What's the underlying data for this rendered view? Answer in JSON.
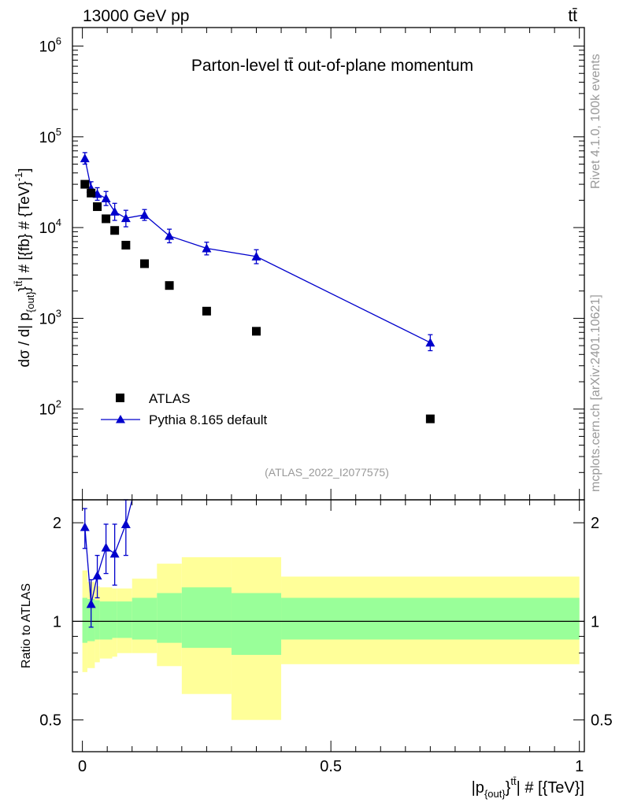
{
  "header": {
    "left": "13000 GeV pp",
    "right": "tt̄"
  },
  "side_labels": {
    "rivet": "Rivet 4.1.0,  100k events",
    "mcplots": "mcplots.cern.ch [arXiv:2401.10621]"
  },
  "colors": {
    "mc": "#0000cc",
    "data": "#000000",
    "band_inner": "#99ff99",
    "band_outer": "#ffff99",
    "note": "#999999"
  },
  "chart_data": [
    {
      "type": "scatter",
      "title": "Parton-level tt̄ out-of-plane momentum",
      "ylabel": "dσ / d| p_{out}^{tt̄}| # [{fb} # {TeV}^-1]",
      "ylabel_parts": {
        "main": "dσ / d| p",
        "sub": "{out}",
        "sup_a": "}",
        "sup_b": "tt̄",
        "rest": "| # [{fb} # {TeV}",
        "unit_exp": "-1",
        "close": "]"
      },
      "yscale": "log",
      "ylim": [
        10,
        1600000.0
      ],
      "xlim": [
        -0.02,
        1.01
      ],
      "yticks": [
        {
          "value": 100,
          "mantissa": "10",
          "exp": "2"
        },
        {
          "value": 1000,
          "mantissa": "10",
          "exp": "3"
        },
        {
          "value": 10000,
          "mantissa": "10",
          "exp": "4"
        },
        {
          "value": 100000,
          "mantissa": "10",
          "exp": "5"
        },
        {
          "value": 1000000,
          "mantissa": "10",
          "exp": "6"
        }
      ],
      "analysis_id": "(ATLAS_2022_I2077575)",
      "legend": {
        "position": "lower-left",
        "entries": [
          "ATLAS",
          "Pythia 8.165 default"
        ]
      },
      "series": [
        {
          "name": "ATLAS",
          "marker": "square",
          "x": [
            0.005,
            0.0175,
            0.03,
            0.0475,
            0.065,
            0.0875,
            0.125,
            0.175,
            0.25,
            0.35,
            0.7
          ],
          "y": [
            30000,
            24000,
            17000,
            12500,
            9300,
            6400,
            4000,
            2300,
            1200,
            720,
            78
          ]
        },
        {
          "name": "Pythia 8.165 default",
          "marker": "triangle",
          "x": [
            0.005,
            0.0175,
            0.03,
            0.0475,
            0.065,
            0.0875,
            0.125,
            0.175,
            0.25,
            0.35,
            0.7
          ],
          "y": [
            58000,
            27000,
            23500,
            21000,
            15000,
            12700,
            13800,
            8100,
            5900,
            4800,
            540
          ],
          "yerr_lo": [
            8000,
            4000,
            3500,
            3500,
            3000,
            2500,
            1800,
            1300,
            900,
            800,
            100
          ],
          "yerr_hi": [
            9000,
            5000,
            4000,
            4000,
            3500,
            2800,
            2000,
            1500,
            1000,
            900,
            120
          ]
        }
      ]
    },
    {
      "type": "scatter",
      "ylabel": "Ratio to ATLAS",
      "yscale": "log",
      "ylim": [
        0.4,
        2.35
      ],
      "yticks": [
        {
          "value": 0.5,
          "label": "0.5"
        },
        {
          "value": 1,
          "label": "1"
        },
        {
          "value": 2,
          "label": "2"
        }
      ],
      "xticks": [
        {
          "value": 0,
          "label": "0"
        },
        {
          "value": 0.5,
          "label": "0.5"
        },
        {
          "value": 1,
          "label": "1"
        }
      ],
      "xlabel": "|p_{out}^{tt̄}| # [{TeV}]",
      "xlabel_parts": {
        "pre": "|p",
        "sub": "{out}",
        "sup_a": "}",
        "sup_b": "tt̄",
        "rest": "| # [{TeV}]"
      },
      "bands": {
        "x_edges": [
          0.0,
          0.01,
          0.025,
          0.035,
          0.06,
          0.07,
          0.1,
          0.15,
          0.2,
          0.3,
          0.4,
          1.0
        ],
        "inner_lo": [
          0.86,
          0.87,
          0.88,
          0.88,
          0.89,
          0.89,
          0.88,
          0.86,
          0.83,
          0.79,
          0.88
        ],
        "inner_hi": [
          1.18,
          1.17,
          1.16,
          1.15,
          1.15,
          1.15,
          1.18,
          1.22,
          1.27,
          1.22,
          1.18
        ],
        "outer_lo": [
          0.7,
          0.72,
          0.75,
          0.77,
          0.78,
          0.8,
          0.8,
          0.73,
          0.6,
          0.5,
          0.74
        ],
        "outer_hi": [
          1.43,
          1.32,
          1.28,
          1.27,
          1.26,
          1.26,
          1.35,
          1.5,
          1.57,
          1.57,
          1.37
        ]
      },
      "series": [
        {
          "name": "Pythia 8.165 default / ATLAS",
          "x": [
            0.005,
            0.0175,
            0.03,
            0.0475,
            0.065,
            0.0875,
            0.1
          ],
          "y": [
            1.94,
            1.13,
            1.38,
            1.68,
            1.61,
            1.98,
            2.35
          ],
          "yerr_lo": [
            0.27,
            0.17,
            0.2,
            0.28,
            0.32,
            0.39,
            0
          ],
          "yerr_hi": [
            0.27,
            0.21,
            0.21,
            0.3,
            0.37,
            0.39,
            0
          ]
        }
      ]
    }
  ]
}
